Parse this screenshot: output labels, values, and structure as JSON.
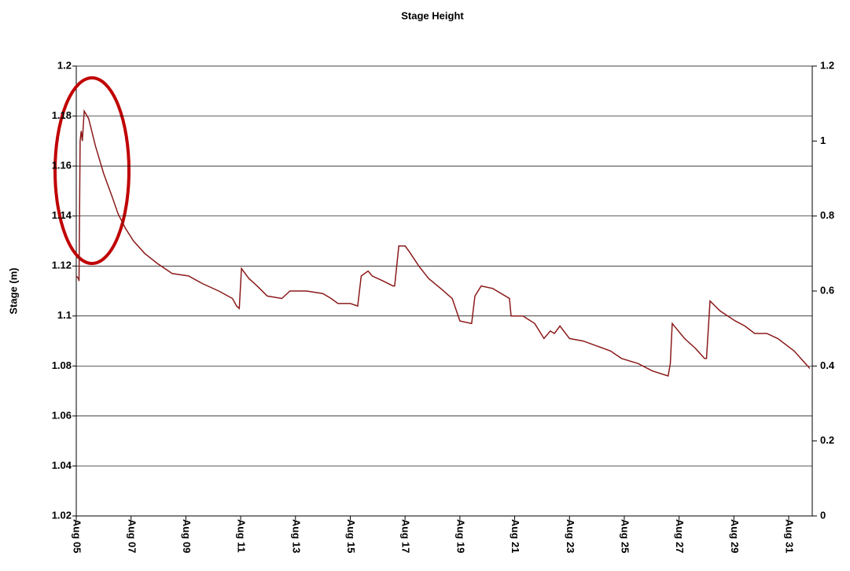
{
  "chart_data": {
    "type": "line",
    "title": "Stage Height",
    "y_label": "Stage (m)",
    "x": [
      5.0,
      5.08,
      5.1,
      5.14,
      5.18,
      5.22,
      5.29,
      5.45,
      5.7,
      6.0,
      6.3,
      6.52,
      6.8,
      7.09,
      7.5,
      7.96,
      8.5,
      9.1,
      9.6,
      10.2,
      10.7,
      10.85,
      10.95,
      11.03,
      11.3,
      11.6,
      11.97,
      12.5,
      12.8,
      13.4,
      14.0,
      14.3,
      14.55,
      15.0,
      15.27,
      15.4,
      15.65,
      15.8,
      16.2,
      16.56,
      16.62,
      16.77,
      17.0,
      17.14,
      17.5,
      17.86,
      18.3,
      18.72,
      19.0,
      19.43,
      19.55,
      19.78,
      20.2,
      20.81,
      20.87,
      21.3,
      21.73,
      22.07,
      22.3,
      22.45,
      22.65,
      23.0,
      23.5,
      24.0,
      24.5,
      24.9,
      25.5,
      26.03,
      26.6,
      26.68,
      26.75,
      27.2,
      27.6,
      27.93,
      28.0,
      28.13,
      28.5,
      29.05,
      29.4,
      29.76,
      30.2,
      30.6,
      31.2,
      31.77
    ],
    "series": [
      {
        "name": "Stage",
        "color": "#8b1a1a",
        "values": [
          1.116,
          1.115,
          1.114,
          1.17,
          1.174,
          1.17,
          1.182,
          1.179,
          1.168,
          1.157,
          1.148,
          1.141,
          1.135,
          1.13,
          1.125,
          1.121,
          1.117,
          1.116,
          1.113,
          1.11,
          1.107,
          1.104,
          1.103,
          1.119,
          1.115,
          1.112,
          1.108,
          1.107,
          1.11,
          1.11,
          1.109,
          1.107,
          1.105,
          1.105,
          1.104,
          1.116,
          1.118,
          1.116,
          1.114,
          1.112,
          1.112,
          1.128,
          1.128,
          1.126,
          1.12,
          1.115,
          1.111,
          1.107,
          1.098,
          1.097,
          1.108,
          1.112,
          1.111,
          1.107,
          1.1,
          1.1,
          1.097,
          1.091,
          1.094,
          1.093,
          1.096,
          1.091,
          1.09,
          1.088,
          1.086,
          1.083,
          1.081,
          1.078,
          1.076,
          1.081,
          1.097,
          1.091,
          1.087,
          1.083,
          1.083,
          1.106,
          1.102,
          1.098,
          1.096,
          1.093,
          1.093,
          1.091,
          1.086,
          1.079
        ]
      }
    ],
    "xlim": [
      5,
      31.86
    ],
    "xticks": [
      {
        "value": 5,
        "label": "Aug 05"
      },
      {
        "value": 7,
        "label": "Aug 07"
      },
      {
        "value": 9,
        "label": "Aug 09"
      },
      {
        "value": 11,
        "label": "Aug 11"
      },
      {
        "value": 13,
        "label": "Aug 13"
      },
      {
        "value": 15,
        "label": "Aug 15"
      },
      {
        "value": 17,
        "label": "Aug 17"
      },
      {
        "value": 19,
        "label": "Aug 19"
      },
      {
        "value": 21,
        "label": "Aug 21"
      },
      {
        "value": 23,
        "label": "Aug 23"
      },
      {
        "value": 25,
        "label": "Aug 25"
      },
      {
        "value": 27,
        "label": "Aug 27"
      },
      {
        "value": 29,
        "label": "Aug 29"
      },
      {
        "value": 31,
        "label": "Aug 31"
      }
    ],
    "ylim": [
      1.02,
      1.2
    ],
    "yticks": [
      1.02,
      1.04,
      1.06,
      1.08,
      1.1,
      1.12,
      1.14,
      1.16,
      1.18,
      1.2
    ],
    "y2lim": [
      0,
      1.2
    ],
    "y2ticks": [
      0,
      0.2,
      0.4,
      0.6,
      0.8,
      1,
      1.2
    ],
    "grid": true
  }
}
